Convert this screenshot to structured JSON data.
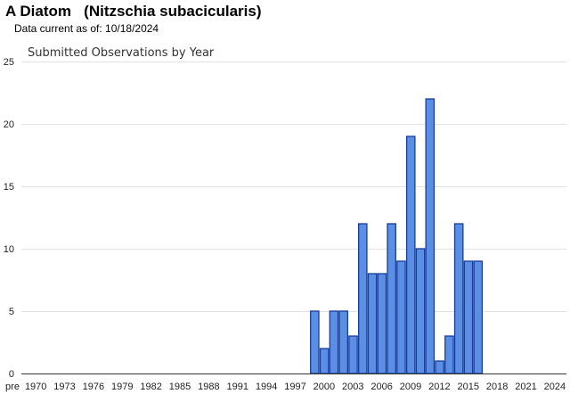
{
  "header": {
    "species_title": "A Diatom   (Nitzschia subacicularis)",
    "data_current": "Data current as of: 10/18/2024"
  },
  "colors": {
    "bar_fill": "#5b8fe6",
    "bar_stroke": "#1a3c99",
    "gridline": "#e2e2e2",
    "axis": "#333333"
  },
  "chart_data": {
    "type": "bar",
    "title": "Submitted Observations by Year",
    "xlabel": "",
    "ylabel": "",
    "ylim": [
      0,
      25
    ],
    "yticks": [
      0,
      5,
      10,
      15,
      20,
      25
    ],
    "grid": true,
    "legend": "none",
    "xtick_labels": [
      "pre",
      "1970",
      "1973",
      "1976",
      "1979",
      "1982",
      "1985",
      "1988",
      "1991",
      "1994",
      "1997",
      "2000",
      "2003",
      "2006",
      "2009",
      "2012",
      "2015",
      "2018",
      "2021",
      "2024"
    ],
    "categories": [
      "pre",
      "1970",
      "1971",
      "1972",
      "1973",
      "1974",
      "1975",
      "1976",
      "1977",
      "1978",
      "1979",
      "1980",
      "1981",
      "1982",
      "1983",
      "1984",
      "1985",
      "1986",
      "1987",
      "1988",
      "1989",
      "1990",
      "1991",
      "1992",
      "1993",
      "1994",
      "1995",
      "1996",
      "1997",
      "1998",
      "1999",
      "2000",
      "2001",
      "2002",
      "2003",
      "2004",
      "2005",
      "2006",
      "2007",
      "2008",
      "2009",
      "2010",
      "2011",
      "2012",
      "2013",
      "2014",
      "2015",
      "2016",
      "2017",
      "2018",
      "2019",
      "2020",
      "2021",
      "2022",
      "2023",
      "2024"
    ],
    "values": [
      0,
      0,
      0,
      0,
      0,
      0,
      0,
      0,
      0,
      0,
      0,
      0,
      0,
      0,
      0,
      0,
      0,
      0,
      0,
      0,
      0,
      0,
      0,
      0,
      0,
      0,
      0,
      0,
      0,
      0,
      5,
      2,
      5,
      5,
      3,
      12,
      8,
      8,
      12,
      9,
      19,
      10,
      22,
      1,
      3,
      12,
      9,
      9,
      0,
      0,
      0,
      0,
      0,
      0,
      0,
      0
    ]
  }
}
